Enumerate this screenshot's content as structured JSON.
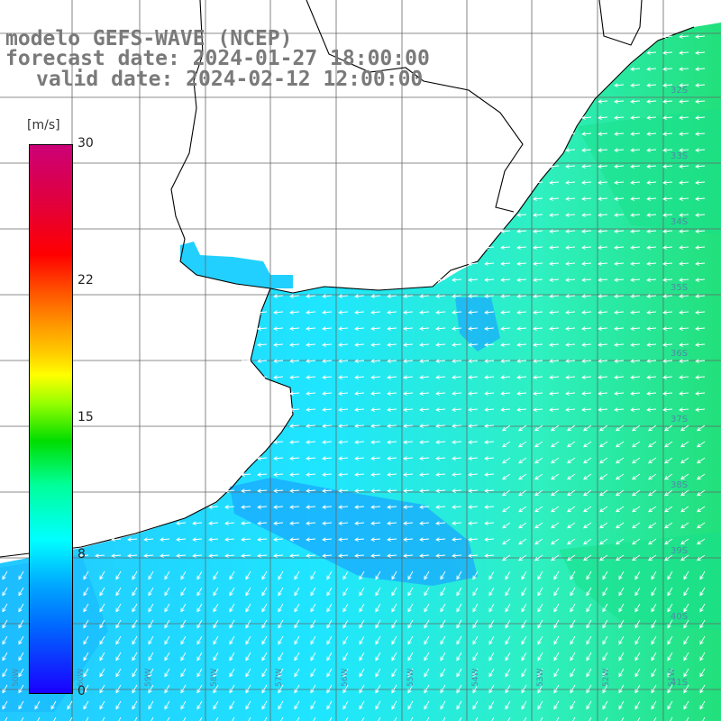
{
  "title": {
    "line1": "modelo GEFS-WAVE (NCEP)",
    "line2": "forecast date: 2024-01-27 18:00:00",
    "line3": "valid date: 2024-02-12 12:00:00"
  },
  "colorbar": {
    "unit": "[m/s]",
    "min": 0,
    "max": 30,
    "ticks": [
      "30",
      "22",
      "15",
      "8",
      "0"
    ],
    "tick_values": [
      30,
      22,
      15,
      8,
      0
    ],
    "colors": [
      "#1a00ff",
      "#0066ff",
      "#00aaff",
      "#00ffff",
      "#00ff99",
      "#00dd00",
      "#ffff00",
      "#ff9900",
      "#ff0000",
      "#cc0077"
    ]
  },
  "lat_labels": [
    "32S",
    "33S",
    "34S",
    "35S",
    "36S",
    "37S",
    "38S",
    "39S",
    "40S",
    "41S"
  ],
  "lon_labels": [
    "60W",
    "59W",
    "58W",
    "57W",
    "56W",
    "55W",
    "54W",
    "53W",
    "52W",
    "51W",
    "50W"
  ],
  "colors": {
    "land": "#ffffff",
    "coast": "#000000",
    "grid": "#666666",
    "ocean_low": "#00aaff",
    "ocean_mid": "#00ffff",
    "ocean_high": "#00dd66",
    "arrow": "#ffffff",
    "title": "#7a7a7a"
  }
}
